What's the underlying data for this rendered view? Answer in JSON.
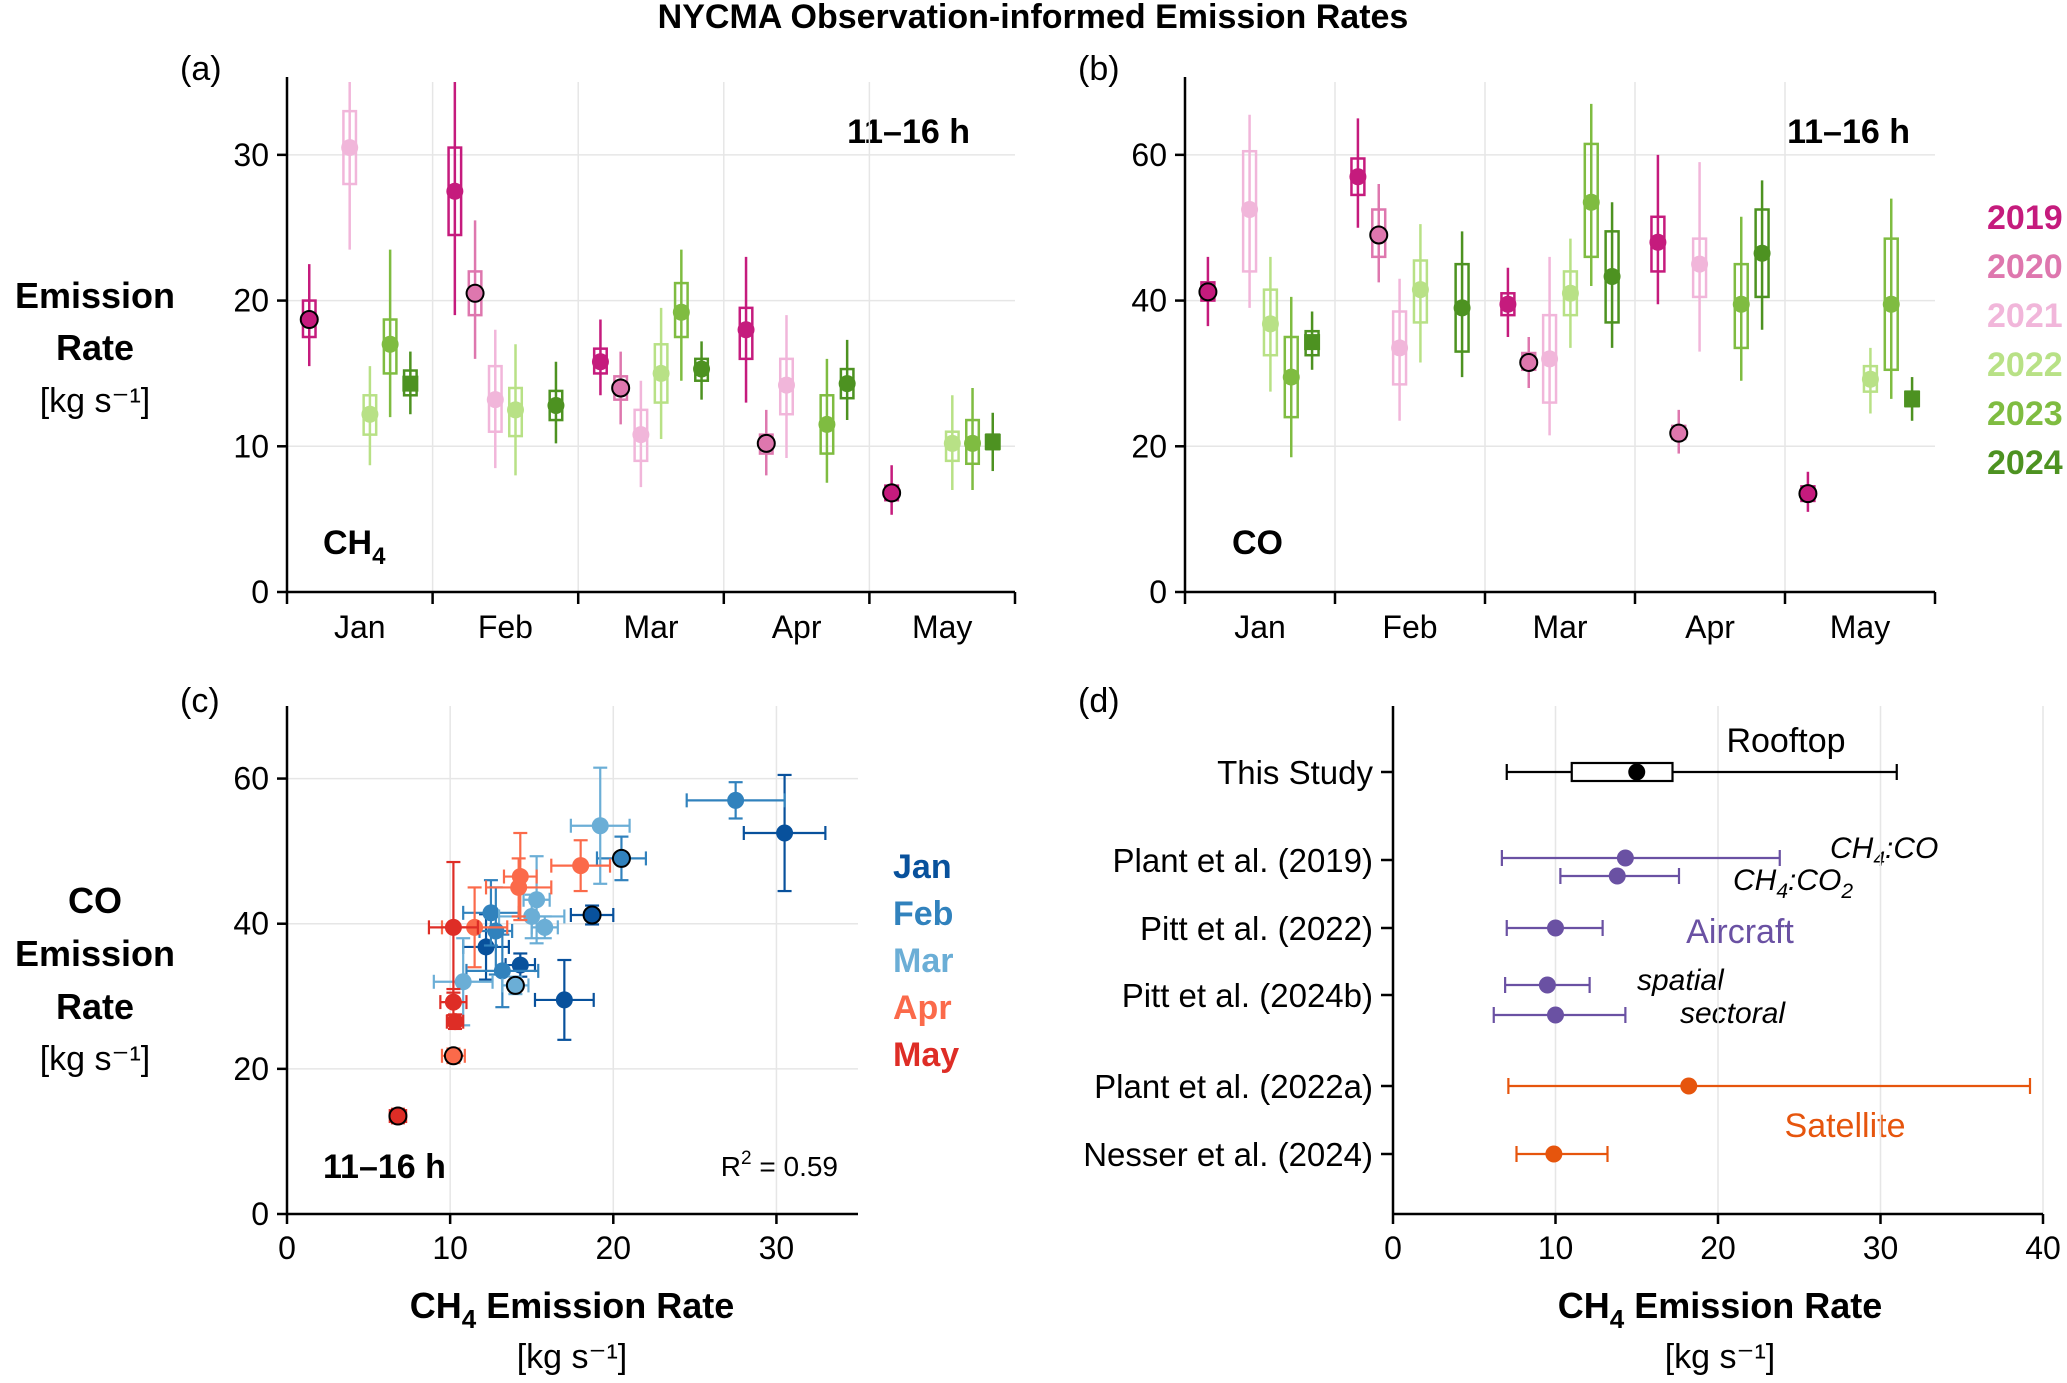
{
  "figure": {
    "title": "NYCMA Observation-informed Emission Rates"
  },
  "year_colors": {
    "2019": "#c51b7d",
    "2020": "#de77ae",
    "2021": "#f1b6da",
    "2022": "#b8e186",
    "2023": "#7fbc41",
    "2024": "#4d9221"
  },
  "month_colors": {
    "Jan": "#08519c",
    "Feb": "#3182bd",
    "Mar": "#6baed6",
    "Apr": "#fb6a4a",
    "May": "#de2d26"
  },
  "chart_data": [
    {
      "panel": "(a)",
      "type": "box",
      "title": "",
      "corner_label": "11–16 h",
      "species_label": "CH",
      "species_sub": "4",
      "ylabel_lines": [
        "Emission",
        "Rate",
        "[kg s⁻¹]"
      ],
      "categories": [
        "Jan",
        "Feb",
        "Mar",
        "Apr",
        "May"
      ],
      "ylim": [
        0,
        35
      ],
      "yticks": [
        0,
        10,
        20,
        30
      ],
      "legend_years": [
        "2019",
        "2020",
        "2021",
        "2022",
        "2023",
        "2024"
      ],
      "series": [
        {
          "name": "2019",
          "values": [
            [
              18.7,
              17.5,
              20.0,
              15.5,
              22.5
            ],
            [
              27.5,
              24.5,
              30.5,
              19.0,
              35.0
            ],
            [
              15.8,
              15.0,
              16.7,
              13.5,
              18.7
            ],
            [
              18.0,
              16.0,
              19.5,
              13.0,
              23.0
            ],
            [
              6.8,
              6.3,
              7.3,
              5.3,
              8.7
            ]
          ],
          "outlined": [
            true,
            false,
            false,
            false,
            true
          ]
        },
        {
          "name": "2020",
          "values": [
            null,
            [
              20.5,
              19.0,
              22.0,
              16.0,
              25.5
            ],
            [
              14.0,
              13.2,
              14.8,
              11.5,
              16.5
            ],
            [
              10.2,
              9.5,
              10.8,
              8.0,
              12.5
            ],
            null
          ],
          "outlined": [
            false,
            true,
            true,
            true,
            false
          ]
        },
        {
          "name": "2021",
          "values": [
            [
              30.5,
              28.0,
              33.0,
              23.5,
              35.0
            ],
            [
              13.2,
              11.0,
              15.5,
              8.5,
              18.0
            ],
            [
              10.8,
              9.0,
              12.5,
              7.2,
              14.5
            ],
            [
              14.2,
              12.2,
              16.0,
              9.2,
              19.0
            ],
            null
          ],
          "outlined": [
            false,
            false,
            false,
            false,
            false
          ]
        },
        {
          "name": "2022",
          "values": [
            [
              12.2,
              10.8,
              13.5,
              8.7,
              15.5
            ],
            [
              12.5,
              10.7,
              14.0,
              8.0,
              17.0
            ],
            [
              15.0,
              13.0,
              17.0,
              10.5,
              19.5
            ],
            null,
            [
              10.2,
              9.0,
              11.0,
              7.0,
              13.5
            ]
          ],
          "outlined": [
            false,
            false,
            false,
            false,
            false
          ]
        },
        {
          "name": "2023",
          "values": [
            [
              17.0,
              15.0,
              18.7,
              12.0,
              23.5
            ],
            null,
            [
              19.2,
              17.5,
              21.2,
              14.5,
              23.5
            ],
            [
              11.5,
              9.5,
              13.5,
              7.5,
              16.0
            ],
            [
              10.2,
              8.8,
              11.8,
              7.0,
              14.0
            ]
          ],
          "outlined": [
            false,
            false,
            false,
            false,
            false
          ]
        },
        {
          "name": "2024",
          "values": [
            [
              14.3,
              13.5,
              15.2,
              12.2,
              16.5
            ],
            [
              12.8,
              11.8,
              13.8,
              10.2,
              15.8
            ],
            [
              15.3,
              14.5,
              16.0,
              13.2,
              17.2
            ],
            [
              14.3,
              13.3,
              15.3,
              11.8,
              17.3
            ],
            [
              10.3,
              9.8,
              10.8,
              8.3,
              12.3
            ]
          ],
          "outlined": [
            false,
            false,
            false,
            false,
            false
          ]
        }
      ]
    },
    {
      "panel": "(b)",
      "type": "box",
      "title": "",
      "corner_label": "11–16 h",
      "species_label": "CO",
      "categories": [
        "Jan",
        "Feb",
        "Mar",
        "Apr",
        "May"
      ],
      "ylim": [
        0,
        70
      ],
      "yticks": [
        0,
        20,
        40,
        60
      ],
      "series": [
        {
          "name": "2019",
          "values": [
            [
              41.2,
              40.0,
              42.5,
              36.5,
              46.0
            ],
            [
              57.0,
              54.5,
              59.5,
              50.0,
              65.0
            ],
            [
              39.5,
              38.0,
              41.0,
              35.0,
              44.5
            ],
            [
              48.0,
              44.0,
              51.5,
              39.5,
              60.0
            ],
            [
              13.5,
              12.5,
              14.5,
              11.0,
              16.5
            ]
          ],
          "outlined": [
            true,
            false,
            false,
            false,
            true
          ]
        },
        {
          "name": "2020",
          "values": [
            null,
            [
              49.0,
              46.0,
              52.5,
              42.5,
              56.0
            ],
            [
              31.5,
              30.5,
              32.8,
              28.0,
              35.0
            ],
            [
              21.8,
              21.0,
              22.8,
              19.0,
              25.0
            ],
            null
          ],
          "outlined": [
            false,
            true,
            true,
            true,
            false
          ]
        },
        {
          "name": "2021",
          "values": [
            [
              52.5,
              44.0,
              60.5,
              39.0,
              65.5
            ],
            [
              33.5,
              28.5,
              38.5,
              23.5,
              43.0
            ],
            [
              32.0,
              26.0,
              38.0,
              21.5,
              46.0
            ],
            [
              45.0,
              40.5,
              48.5,
              33.0,
              59.0
            ],
            null
          ],
          "outlined": [
            false,
            false,
            false,
            false,
            false
          ]
        },
        {
          "name": "2022",
          "values": [
            [
              36.8,
              32.5,
              41.5,
              27.5,
              46.0
            ],
            [
              41.5,
              37.0,
              45.5,
              31.5,
              50.5
            ],
            [
              41.0,
              38.0,
              44.0,
              33.5,
              48.5
            ],
            null,
            [
              29.2,
              27.5,
              31.0,
              24.5,
              33.5
            ]
          ],
          "outlined": [
            false,
            false,
            false,
            false,
            false
          ]
        },
        {
          "name": "2023",
          "values": [
            [
              29.5,
              24.0,
              35.0,
              18.5,
              40.5
            ],
            null,
            [
              53.5,
              46.0,
              61.5,
              42.0,
              67.0
            ],
            [
              39.5,
              33.5,
              45.0,
              29.0,
              51.5
            ],
            [
              39.5,
              30.5,
              48.5,
              26.5,
              54.0
            ]
          ],
          "outlined": [
            false,
            false,
            false,
            false,
            false
          ]
        },
        {
          "name": "2024",
          "values": [
            [
              34.3,
              32.5,
              35.8,
              30.5,
              38.5
            ],
            [
              39.0,
              33.0,
              45.0,
              29.5,
              49.5
            ],
            [
              43.3,
              37.0,
              49.5,
              33.5,
              53.5
            ],
            [
              46.5,
              40.5,
              52.5,
              36.0,
              56.5
            ],
            [
              26.5,
              25.5,
              27.5,
              23.5,
              29.5
            ]
          ],
          "outlined": [
            false,
            false,
            false,
            false,
            false
          ]
        }
      ]
    },
    {
      "panel": "(c)",
      "type": "scatter",
      "corner_label": "11–16 h",
      "r2_label": "R",
      "r2_sup": "2",
      "r2_value": " = 0.59",
      "xlabel_main": "CH",
      "xlabel_sub": "4",
      "xlabel_rest": " Emission Rate",
      "xlabel_units": "[kg s⁻¹]",
      "ylabel_lines": [
        "CO",
        "Emission",
        "Rate",
        "[kg s⁻¹]"
      ],
      "xlim": [
        0,
        35
      ],
      "ylim": [
        0,
        70
      ],
      "xticks": [
        0,
        10,
        20,
        30
      ],
      "yticks": [
        0,
        20,
        40,
        60
      ],
      "legend_months": [
        "Jan",
        "Feb",
        "Mar",
        "Apr",
        "May"
      ],
      "points": [
        {
          "month": "Jan",
          "x": 30.5,
          "y": 52.5,
          "xerr": 2.5,
          "yerr": 8.0,
          "outlined": false
        },
        {
          "month": "Jan",
          "x": 18.7,
          "y": 41.2,
          "xerr": 1.3,
          "yerr": 1.3,
          "outlined": true
        },
        {
          "month": "Jan",
          "x": 12.2,
          "y": 36.8,
          "xerr": 1.4,
          "yerr": 4.5,
          "outlined": false
        },
        {
          "month": "Jan",
          "x": 17.0,
          "y": 29.5,
          "xerr": 1.8,
          "yerr": 5.5,
          "outlined": false
        },
        {
          "month": "Jan",
          "x": 14.3,
          "y": 34.3,
          "xerr": 0.9,
          "yerr": 1.6,
          "outlined": false
        },
        {
          "month": "Feb",
          "x": 27.5,
          "y": 57.0,
          "xerr": 3.0,
          "yerr": 2.5,
          "outlined": false
        },
        {
          "month": "Feb",
          "x": 20.5,
          "y": 49.0,
          "xerr": 1.5,
          "yerr": 3.0,
          "outlined": true
        },
        {
          "month": "Feb",
          "x": 13.2,
          "y": 33.5,
          "xerr": 2.2,
          "yerr": 5.0,
          "outlined": false
        },
        {
          "month": "Feb",
          "x": 12.5,
          "y": 41.5,
          "xerr": 1.7,
          "yerr": 4.5,
          "outlined": false
        },
        {
          "month": "Feb",
          "x": 12.8,
          "y": 39.0,
          "xerr": 1.0,
          "yerr": 6.0,
          "outlined": false
        },
        {
          "month": "Mar",
          "x": 15.8,
          "y": 39.5,
          "xerr": 0.8,
          "yerr": 1.5,
          "outlined": false
        },
        {
          "month": "Mar",
          "x": 14.0,
          "y": 31.5,
          "xerr": 0.8,
          "yerr": 1.2,
          "outlined": true
        },
        {
          "month": "Mar",
          "x": 10.8,
          "y": 32.0,
          "xerr": 1.8,
          "yerr": 6.0,
          "outlined": false
        },
        {
          "month": "Mar",
          "x": 15.0,
          "y": 41.0,
          "xerr": 2.0,
          "yerr": 3.0,
          "outlined": false
        },
        {
          "month": "Mar",
          "x": 19.2,
          "y": 53.5,
          "xerr": 1.8,
          "yerr": 8.0,
          "outlined": false
        },
        {
          "month": "Mar",
          "x": 15.3,
          "y": 43.3,
          "xerr": 0.8,
          "yerr": 6.0,
          "outlined": false
        },
        {
          "month": "Apr",
          "x": 18.0,
          "y": 48.0,
          "xerr": 1.8,
          "yerr": 3.5,
          "outlined": false
        },
        {
          "month": "Apr",
          "x": 10.2,
          "y": 21.8,
          "xerr": 0.7,
          "yerr": 1.0,
          "outlined": true
        },
        {
          "month": "Apr",
          "x": 14.2,
          "y": 45.0,
          "xerr": 2.0,
          "yerr": 4.0,
          "outlined": false
        },
        {
          "month": "Apr",
          "x": 11.5,
          "y": 39.5,
          "xerr": 2.0,
          "yerr": 5.5,
          "outlined": false
        },
        {
          "month": "Apr",
          "x": 14.3,
          "y": 46.5,
          "xerr": 1.0,
          "yerr": 6.0,
          "outlined": false
        },
        {
          "month": "May",
          "x": 6.8,
          "y": 13.5,
          "xerr": 0.5,
          "yerr": 1.0,
          "outlined": true
        },
        {
          "month": "May",
          "x": 10.2,
          "y": 29.2,
          "xerr": 0.8,
          "yerr": 1.8,
          "outlined": false
        },
        {
          "month": "May",
          "x": 10.2,
          "y": 39.5,
          "xerr": 1.5,
          "yerr": 9.0,
          "outlined": false
        },
        {
          "month": "May",
          "x": 10.3,
          "y": 26.5,
          "xerr": 0.5,
          "yerr": 1.0,
          "outlined": false
        }
      ]
    },
    {
      "panel": "(d)",
      "type": "forest",
      "xlabel_main": "CH",
      "xlabel_sub": "4",
      "xlabel_rest": " Emission Rate",
      "xlabel_units": "[kg s⁻¹]",
      "xlim": [
        0,
        40
      ],
      "xticks": [
        0,
        10,
        20,
        30,
        40
      ],
      "rows": [
        {
          "label": "This Study",
          "value": 15.0,
          "box_low": 11.0,
          "box_high": 17.2,
          "low": 7.0,
          "high": 31.0,
          "group": "rooftop"
        },
        {
          "label": "Plant et al. (2019)",
          "value": 14.3,
          "low": 6.7,
          "high": 23.8,
          "group": "aircraft",
          "annotation": "CH4:CO"
        },
        {
          "label": "",
          "value": 13.8,
          "low": 10.3,
          "high": 17.6,
          "group": "aircraft",
          "annotation": "CH4:CO2"
        },
        {
          "label": "Pitt et al. (2022)",
          "value": 10.0,
          "low": 7.0,
          "high": 12.9,
          "group": "aircraft"
        },
        {
          "label": "Pitt et al. (2024b)",
          "value": 9.5,
          "low": 6.9,
          "high": 12.1,
          "group": "aircraft",
          "annotation": "spatial"
        },
        {
          "label": "",
          "value": 10.0,
          "low": 6.2,
          "high": 14.3,
          "group": "aircraft",
          "annotation": "sectoral"
        },
        {
          "label": "Plant et al. (2022a)",
          "value": 18.2,
          "low": 7.1,
          "high": 39.2,
          "group": "satellite"
        },
        {
          "label": "Nesser et al. (2024)",
          "value": 9.9,
          "low": 7.6,
          "high": 13.2,
          "group": "satellite"
        }
      ],
      "group_labels": {
        "rooftop": "Rooftop",
        "aircraft": "Aircraft",
        "satellite": "Satellite"
      },
      "group_colors": {
        "rooftop": "#000000",
        "aircraft": "#6a51a3",
        "satellite": "#e6550d"
      },
      "annotations": {
        "ch4co_main": "CH",
        "ch4co_sub": "4",
        "ch4co_rest": ":CO",
        "ch4co2_main": "CH",
        "ch4co2_sub": "4",
        "ch4co2_rest": ":CO",
        "ch4co2_sub2": "2",
        "spatial": "spatial",
        "sectoral": "sectoral"
      }
    }
  ]
}
